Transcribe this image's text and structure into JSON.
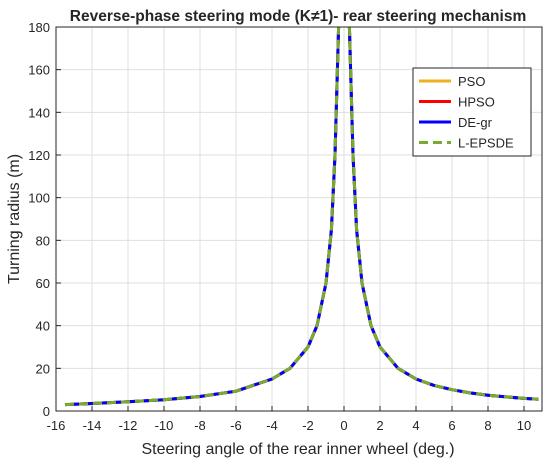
{
  "chart_data": {
    "type": "line",
    "title": "Reverse-phase steering mode (K≠1)- rear steering mechanism",
    "xlabel": "Steering angle of the rear inner wheel (deg.)",
    "ylabel": "Turning radius (m)",
    "xlim": [
      -16,
      11
    ],
    "ylim": [
      0,
      180
    ],
    "xticks": [
      -16,
      -14,
      -12,
      -10,
      -8,
      -6,
      -4,
      -2,
      0,
      2,
      4,
      6,
      8,
      10
    ],
    "yticks": [
      0,
      20,
      40,
      60,
      80,
      100,
      120,
      140,
      160,
      180
    ],
    "grid": true,
    "legend_position": "top-right",
    "curve_points": {
      "x": [
        -15.5,
        -14,
        -12,
        -10,
        -8,
        -6,
        -4,
        -3,
        -2,
        -1.5,
        -1,
        -0.7,
        -0.5,
        -0.3,
        0.3,
        0.5,
        0.7,
        1,
        1.5,
        2,
        3,
        4,
        5,
        6,
        7,
        8,
        9,
        10,
        10.8
      ],
      "y": [
        3,
        3.5,
        4.3,
        5.3,
        6.8,
        9.3,
        15,
        20,
        30,
        40,
        60,
        85,
        120,
        180,
        180,
        120,
        85,
        60,
        40,
        30,
        20,
        15,
        12,
        10,
        8.5,
        7.4,
        6.6,
        5.9,
        5.5
      ]
    },
    "series": [
      {
        "name": "PSO",
        "color": "#EDB120",
        "style": "solid"
      },
      {
        "name": "HPSO",
        "color": "#FF0000",
        "style": "solid"
      },
      {
        "name": "DE-gr",
        "color": "#0000FF",
        "style": "solid"
      },
      {
        "name": "L-EPSDE",
        "color": "#77AC30",
        "style": "dashed"
      }
    ]
  }
}
